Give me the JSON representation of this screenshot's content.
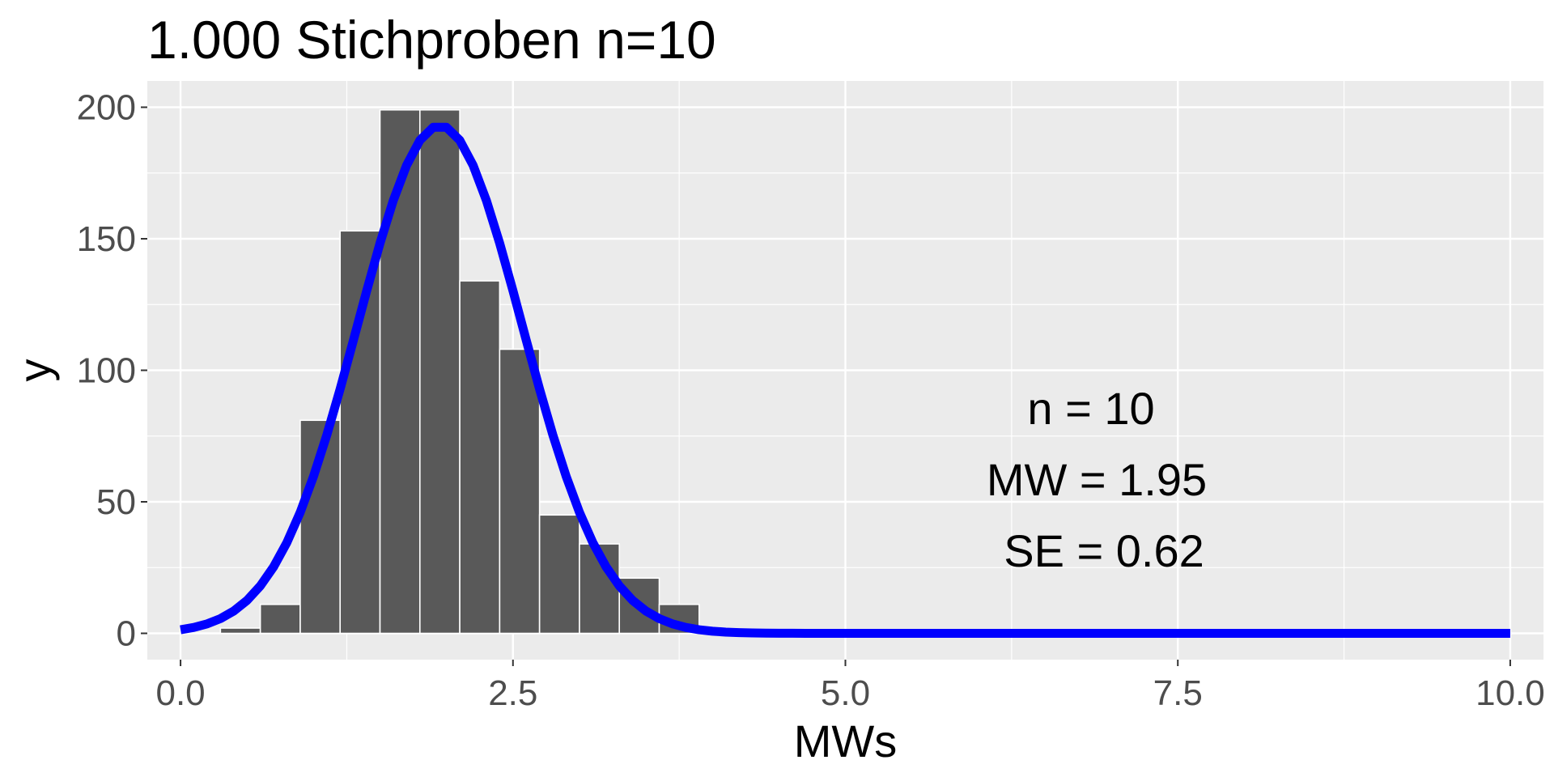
{
  "chart_data": {
    "type": "bar",
    "title": "1.000 Stichproben n=10",
    "xlabel": "MWs",
    "ylabel": "y",
    "xlim": [
      -0.25,
      10.25
    ],
    "ylim": [
      -10,
      210
    ],
    "x_ticks": [
      0.0,
      2.5,
      5.0,
      7.5,
      10.0
    ],
    "x_tick_labels": [
      "0.0",
      "2.5",
      "5.0",
      "7.5",
      "10.0"
    ],
    "y_ticks": [
      0,
      50,
      100,
      150,
      200
    ],
    "y_tick_labels": [
      "0",
      "50",
      "100",
      "150",
      "200"
    ],
    "grid": true,
    "bin_width": 0.3,
    "bins": [
      {
        "x": 0.45,
        "count": 2
      },
      {
        "x": 0.75,
        "count": 11
      },
      {
        "x": 1.05,
        "count": 81
      },
      {
        "x": 1.35,
        "count": 153
      },
      {
        "x": 1.65,
        "count": 199
      },
      {
        "x": 1.95,
        "count": 199
      },
      {
        "x": 2.25,
        "count": 134
      },
      {
        "x": 2.55,
        "count": 108
      },
      {
        "x": 2.85,
        "count": 45
      },
      {
        "x": 3.15,
        "count": 34
      },
      {
        "x": 3.45,
        "count": 21
      },
      {
        "x": 3.75,
        "count": 11
      }
    ],
    "curve": {
      "type": "normal-density",
      "mean": 1.95,
      "sd": 0.62,
      "peak": 193,
      "x_range": [
        0,
        10
      ],
      "color": "#0000ff"
    },
    "annotations": [
      "n = 10",
      "MW = 1.95",
      "SE = 0.62"
    ],
    "colors": {
      "panel_bg": "#ebebeb",
      "grid_major": "#ffffff",
      "bar_fill": "#595959",
      "bar_outline": "#ffffff",
      "curve": "#0000ff"
    }
  }
}
